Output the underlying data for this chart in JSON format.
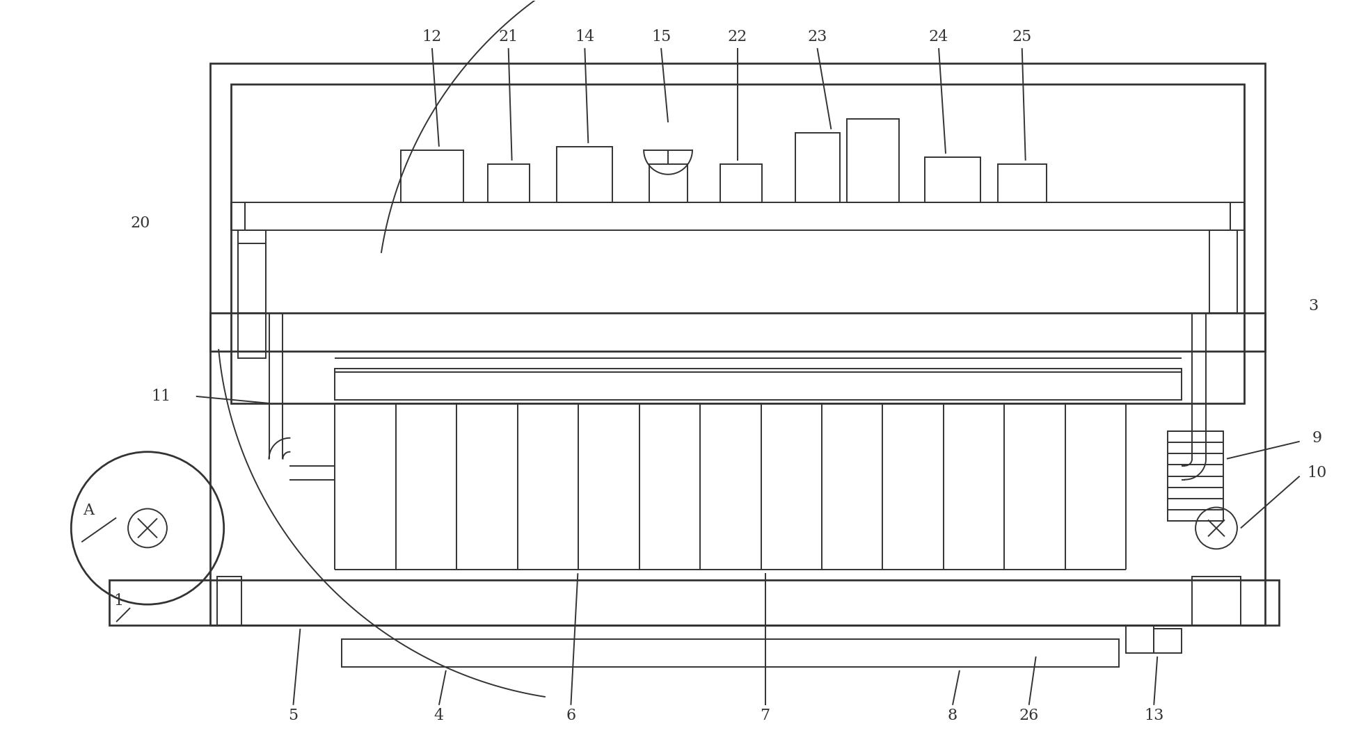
{
  "bg_color": "#ffffff",
  "line_color": "#333333",
  "lw": 1.4,
  "lw2": 2.0,
  "fig_w": 19.53,
  "fig_h": 10.77,
  "label_fontsize": 16
}
